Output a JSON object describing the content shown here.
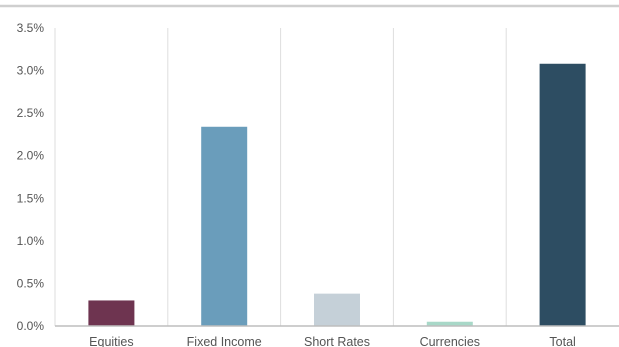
{
  "chart_data": {
    "type": "bar",
    "title": "",
    "xlabel": "",
    "ylabel": "",
    "categories": [
      "Equities",
      "Fixed Income",
      "Short Rates",
      "Currencies",
      "Total"
    ],
    "values": [
      0.003,
      0.0234,
      0.0038,
      0.0005,
      0.0308
    ],
    "colors": [
      "#6e3450",
      "#6a9dbb",
      "#c5d0d8",
      "#a8d8c8",
      "#2d4d62"
    ],
    "ylim": [
      0,
      0.035
    ],
    "yticks": [
      0,
      0.005,
      0.01,
      0.015,
      0.02,
      0.025,
      0.03,
      0.035
    ],
    "ytick_labels": [
      "0.0%",
      "0.5%",
      "1.0%",
      "1.5%",
      "2.0%",
      "2.5%",
      "3.0%",
      "3.5%"
    ],
    "grid": {
      "horizontal": false,
      "vertical_category_separators": true
    },
    "legend": "none",
    "value_format": "percent"
  }
}
